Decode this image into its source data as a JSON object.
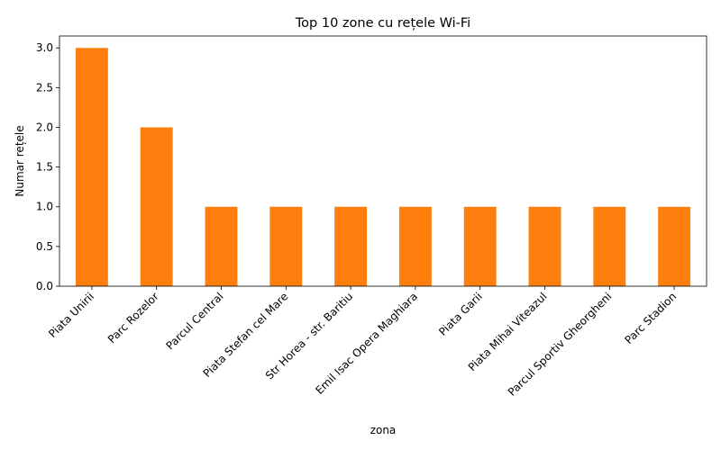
{
  "chart_data": {
    "type": "bar",
    "title": "Top 10 zone cu rețele Wi-Fi",
    "xlabel": "zona",
    "ylabel": "Numar rețele",
    "categories": [
      "Piata Unirii",
      "Parc Rozelor",
      "Parcul Central",
      "Piata Stefan cel Mare",
      "Str Horea - str. Baritiu",
      "Emil Isac Opera Maghiara",
      "Piata Garii",
      "Piata Mihai Viteazul",
      "Parcul Sportiv Gheorgheni",
      "Parc Stadion"
    ],
    "values": [
      3,
      2,
      1,
      1,
      1,
      1,
      1,
      1,
      1,
      1
    ],
    "ylim": [
      0,
      3.15
    ],
    "yticks": [
      "0.0",
      "0.5",
      "1.0",
      "1.5",
      "2.0",
      "2.5",
      "3.0"
    ],
    "bar_color": "#ff7f0e",
    "grid": false,
    "legend": "none"
  }
}
